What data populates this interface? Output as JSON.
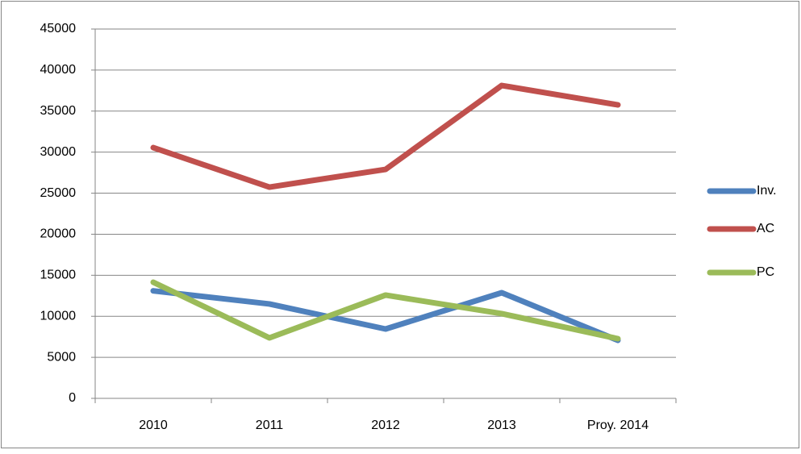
{
  "chart_data": {
    "type": "line",
    "categories": [
      "2010",
      "2011",
      "2012",
      "2013",
      "Proy. 2014"
    ],
    "series": [
      {
        "name": "Inv.",
        "color": "#4f81bd",
        "values": [
          13100,
          11500,
          8450,
          12870,
          7070
        ]
      },
      {
        "name": "AC",
        "color": "#c0504d",
        "values": [
          30550,
          25740,
          27900,
          38120,
          35760
        ]
      },
      {
        "name": "PC",
        "color": "#9bbb59",
        "values": [
          14150,
          7370,
          12580,
          10320,
          7270
        ]
      }
    ],
    "ylim": [
      0,
      45000
    ],
    "yticks": [
      0,
      5000,
      10000,
      15000,
      20000,
      25000,
      30000,
      35000,
      40000,
      45000
    ],
    "grid": true,
    "legend": "right"
  }
}
